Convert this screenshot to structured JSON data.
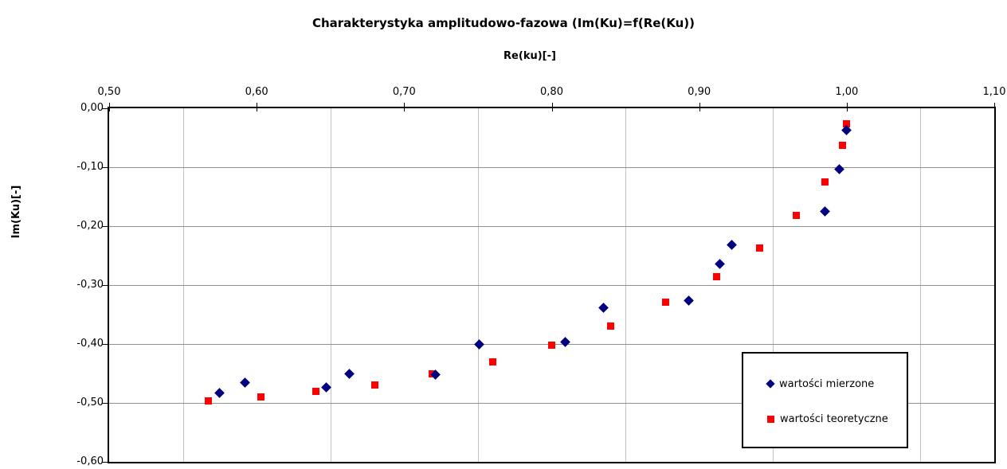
{
  "chart_data": {
    "type": "scatter",
    "title": "Charakterystyka amplitudowo-fazowa (Im(Ku)=f(Re(Ku))",
    "xlabel": "Re(ku)[-]",
    "ylabel": "Im(Ku)[-]",
    "xlim": [
      0.5,
      1.1
    ],
    "ylim": [
      -0.6,
      0.0
    ],
    "x_ticks": {
      "labels": [
        "0,50",
        "0,60",
        "0,70",
        "0,80",
        "0,90",
        "1,00",
        "1,10"
      ],
      "values": [
        0.5,
        0.6,
        0.7,
        0.8,
        0.9,
        1.0,
        1.1
      ]
    },
    "y_ticks": {
      "labels": [
        "0,00",
        "-0,10",
        "-0,20",
        "-0,30",
        "-0,40",
        "-0,50",
        "-0,60"
      ],
      "values": [
        0.0,
        -0.1,
        -0.2,
        -0.3,
        -0.4,
        -0.5,
        -0.6
      ]
    },
    "x_gridlines": [
      0.55,
      0.65,
      0.75,
      0.85,
      0.95,
      1.05
    ],
    "y_gridlines": [
      -0.1,
      -0.2,
      -0.3,
      -0.4,
      -0.5
    ],
    "grid": true,
    "legend_position": "inside-bottom-right",
    "series": [
      {
        "name": "wartości mierzone",
        "marker": "diamond",
        "color": "#000080",
        "points": [
          [
            0.575,
            -0.483
          ],
          [
            0.592,
            -0.465
          ],
          [
            0.647,
            -0.473
          ],
          [
            0.663,
            -0.45
          ],
          [
            0.721,
            -0.452
          ],
          [
            0.751,
            -0.4
          ],
          [
            0.809,
            -0.397
          ],
          [
            0.835,
            -0.338
          ],
          [
            0.893,
            -0.326
          ],
          [
            0.914,
            -0.264
          ],
          [
            0.922,
            -0.232
          ],
          [
            0.985,
            -0.175
          ],
          [
            0.995,
            -0.104
          ],
          [
            1.0,
            -0.037
          ]
        ]
      },
      {
        "name": "wartości teoretyczne",
        "marker": "square",
        "color": "#ff0000",
        "points": [
          [
            0.567,
            -0.497
          ],
          [
            0.603,
            -0.49
          ],
          [
            0.64,
            -0.481
          ],
          [
            0.68,
            -0.469
          ],
          [
            0.719,
            -0.451
          ],
          [
            0.76,
            -0.43
          ],
          [
            0.8,
            -0.402
          ],
          [
            0.84,
            -0.369
          ],
          [
            0.877,
            -0.329
          ],
          [
            0.912,
            -0.286
          ],
          [
            0.941,
            -0.237
          ],
          [
            0.966,
            -0.182
          ],
          [
            0.985,
            -0.125
          ],
          [
            0.997,
            -0.063
          ],
          [
            1.0,
            -0.026
          ]
        ]
      }
    ]
  },
  "legend": {
    "entries": [
      {
        "label": "wartości mierzone",
        "marker": "diamond-icon",
        "color": "#000080"
      },
      {
        "label": "wartości teoretyczne",
        "marker": "square-icon",
        "color": "#ff0000"
      }
    ]
  },
  "colors": {
    "background": "#ffffff",
    "axis": "#000000",
    "gridline_horizontal": "#909090",
    "gridline_vertical": "#c0c0c0",
    "series_measured": "#000080",
    "series_theoretical": "#ff0000",
    "text": "#000000"
  }
}
